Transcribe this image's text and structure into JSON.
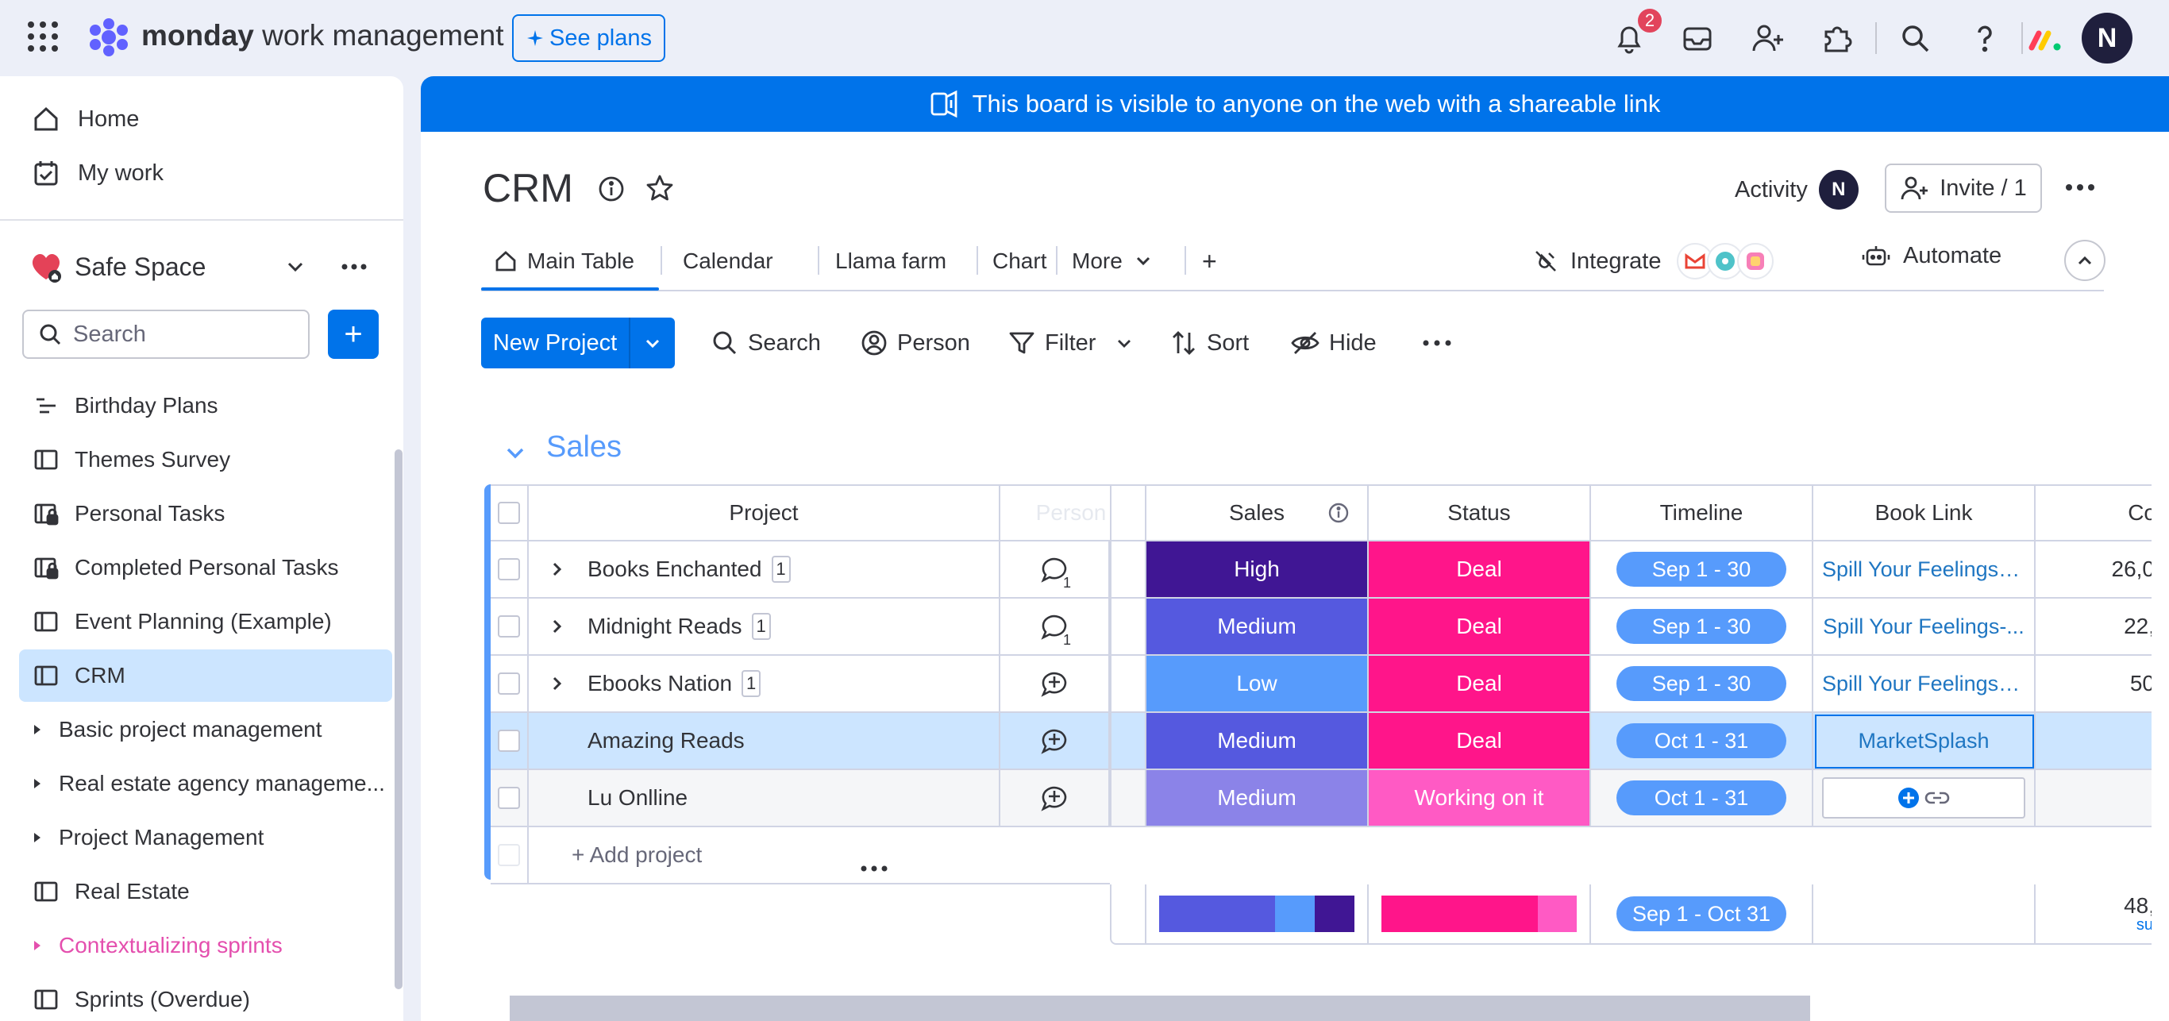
{
  "topbar": {
    "brand_bold": "monday",
    "brand_rest": " work management",
    "see_plans": "See plans",
    "notifications_count": "2",
    "avatar_initial": "N"
  },
  "sidebar": {
    "home": "Home",
    "my_work": "My work",
    "workspace": "Safe Space",
    "search_placeholder": "Search",
    "add_label": "+",
    "boards": [
      {
        "label": "Birthday Plans",
        "icon": "list-icon"
      },
      {
        "label": "Themes Survey",
        "icon": "board-icon"
      },
      {
        "label": "Personal Tasks",
        "icon": "private-board-icon"
      },
      {
        "label": "Completed Personal Tasks",
        "icon": "private-board-icon"
      },
      {
        "label": "Event Planning (Example)",
        "icon": "board-icon"
      },
      {
        "label": "CRM",
        "icon": "board-icon",
        "active": true
      },
      {
        "label": "Basic project management",
        "icon": "folder-caret-icon"
      },
      {
        "label": "Real estate agency manageme...",
        "icon": "folder-caret-icon"
      },
      {
        "label": "Project Management",
        "icon": "folder-caret-icon"
      },
      {
        "label": "Real Estate",
        "icon": "board-icon"
      },
      {
        "label": "Contextualizing sprints",
        "icon": "folder-caret-icon",
        "pink": true
      },
      {
        "label": "Sprints (Overdue)",
        "icon": "board-icon"
      }
    ]
  },
  "banner": {
    "text": "This board is visible to anyone on the web with a shareable link"
  },
  "board": {
    "title": "CRM",
    "activity": "Activity",
    "activity_avatar": "N",
    "invite": "Invite / 1",
    "tabs": [
      "Main Table",
      "Calendar",
      "Llama farm",
      "Chart",
      "More"
    ],
    "add_tab": "+",
    "integrate": "Integrate",
    "automate": "Automate",
    "new_project": "New Project",
    "tools": {
      "search": "Search",
      "person": "Person",
      "filter": "Filter",
      "sort": "Sort",
      "hide": "Hide"
    }
  },
  "group": {
    "title": "Sales",
    "color": "#579bfc",
    "columns": {
      "project": "Project",
      "person": "Person",
      "sales": "Sales",
      "status": "Status",
      "timeline": "Timeline",
      "book_link": "Book Link",
      "cut": "Co"
    },
    "rows": [
      {
        "project": "Books Enchanted",
        "count": "1",
        "person_count": "1",
        "sales": "High",
        "sales_color": "#401694",
        "status": "Deal",
        "status_color": "#ff158a",
        "timeline": "Sep 1 - 30",
        "link": "Spill Your Feelings-B...",
        "num": "26,0"
      },
      {
        "project": "Midnight Reads",
        "count": "1",
        "person_count": "1",
        "sales": "Medium",
        "sales_color": "#5559df",
        "status": "Deal",
        "status_color": "#ff158a",
        "timeline": "Sep 1 - 30",
        "link": "Spill Your Feelings-...",
        "num": "22,"
      },
      {
        "project": "Ebooks Nation",
        "count": "1",
        "person_count": "",
        "sales": "Low",
        "sales_color": "#579bfc",
        "status": "Deal",
        "status_color": "#ff158a",
        "timeline": "Sep 1 - 30",
        "link": "Spill Your Feelings E...",
        "num": "50"
      },
      {
        "project": "Amazing Reads",
        "count": "",
        "person_count": "",
        "sales": "Medium",
        "sales_color": "#5559df",
        "status": "Deal",
        "status_color": "#ff158a",
        "timeline": "Oct 1 - 31",
        "link": "MarketSplash",
        "num": ""
      },
      {
        "project": "Lu Onlline",
        "count": "",
        "person_count": "",
        "sales": "Medium",
        "sales_color": "#8b83e8",
        "status": "Working on it",
        "status_color": "#ff5ac4",
        "timeline": "Oct 1 - 31",
        "link": "",
        "num": ""
      }
    ],
    "add_project": "+ Add project",
    "summary": {
      "timeline": "Sep 1 - Oct 31",
      "num": "48,",
      "num_sub": "su"
    }
  }
}
